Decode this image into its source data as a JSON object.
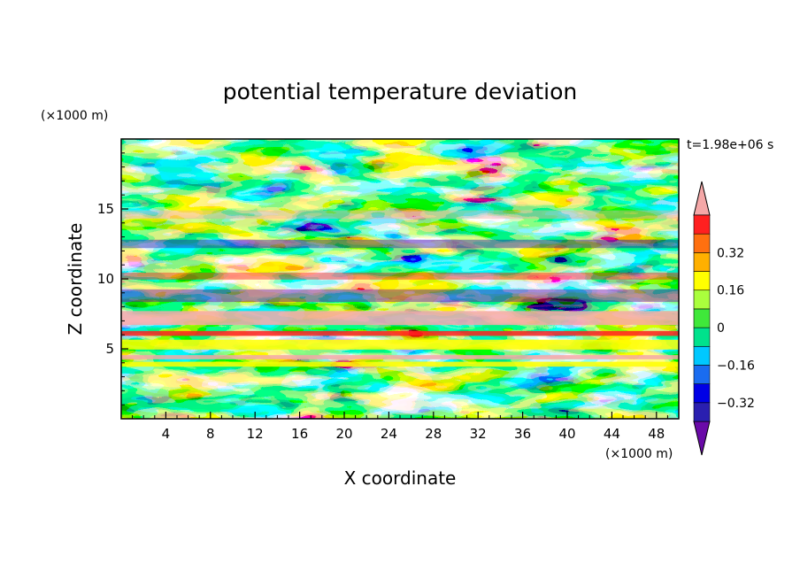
{
  "chart_data": {
    "type": "heatmap",
    "title": "potential temperature deviation",
    "xlabel": "X coordinate",
    "ylabel": "Z coordinate",
    "x_unit": "(×1000 m)",
    "y_unit": "(×1000 m)",
    "time_label": "t=1.98e+06 s",
    "xlim": [
      0,
      50
    ],
    "ylim": [
      0,
      20
    ],
    "x_ticks": [
      "4",
      "8",
      "12",
      "16",
      "20",
      "24",
      "28",
      "32",
      "36",
      "40",
      "44",
      "48"
    ],
    "y_ticks": [
      "5",
      "10",
      "15"
    ],
    "colorbar": {
      "levels": [
        -0.48,
        -0.4,
        -0.32,
        -0.24,
        -0.16,
        -0.08,
        0,
        0.08,
        0.16,
        0.24,
        0.32,
        0.4,
        0.48
      ],
      "tick_labels": [
        "0.32",
        "0.16",
        "0",
        "−0.16",
        "−0.32"
      ],
      "colors": [
        "#6a0aa8",
        "#2a1fb0",
        "#0000e6",
        "#1a6cf0",
        "#00c8ff",
        "#00e28c",
        "#3fe83a",
        "#aaff3d",
        "#ffff00",
        "#ffb000",
        "#ff7010",
        "#ff2020",
        "#f5a8a8"
      ]
    },
    "grid": false
  }
}
